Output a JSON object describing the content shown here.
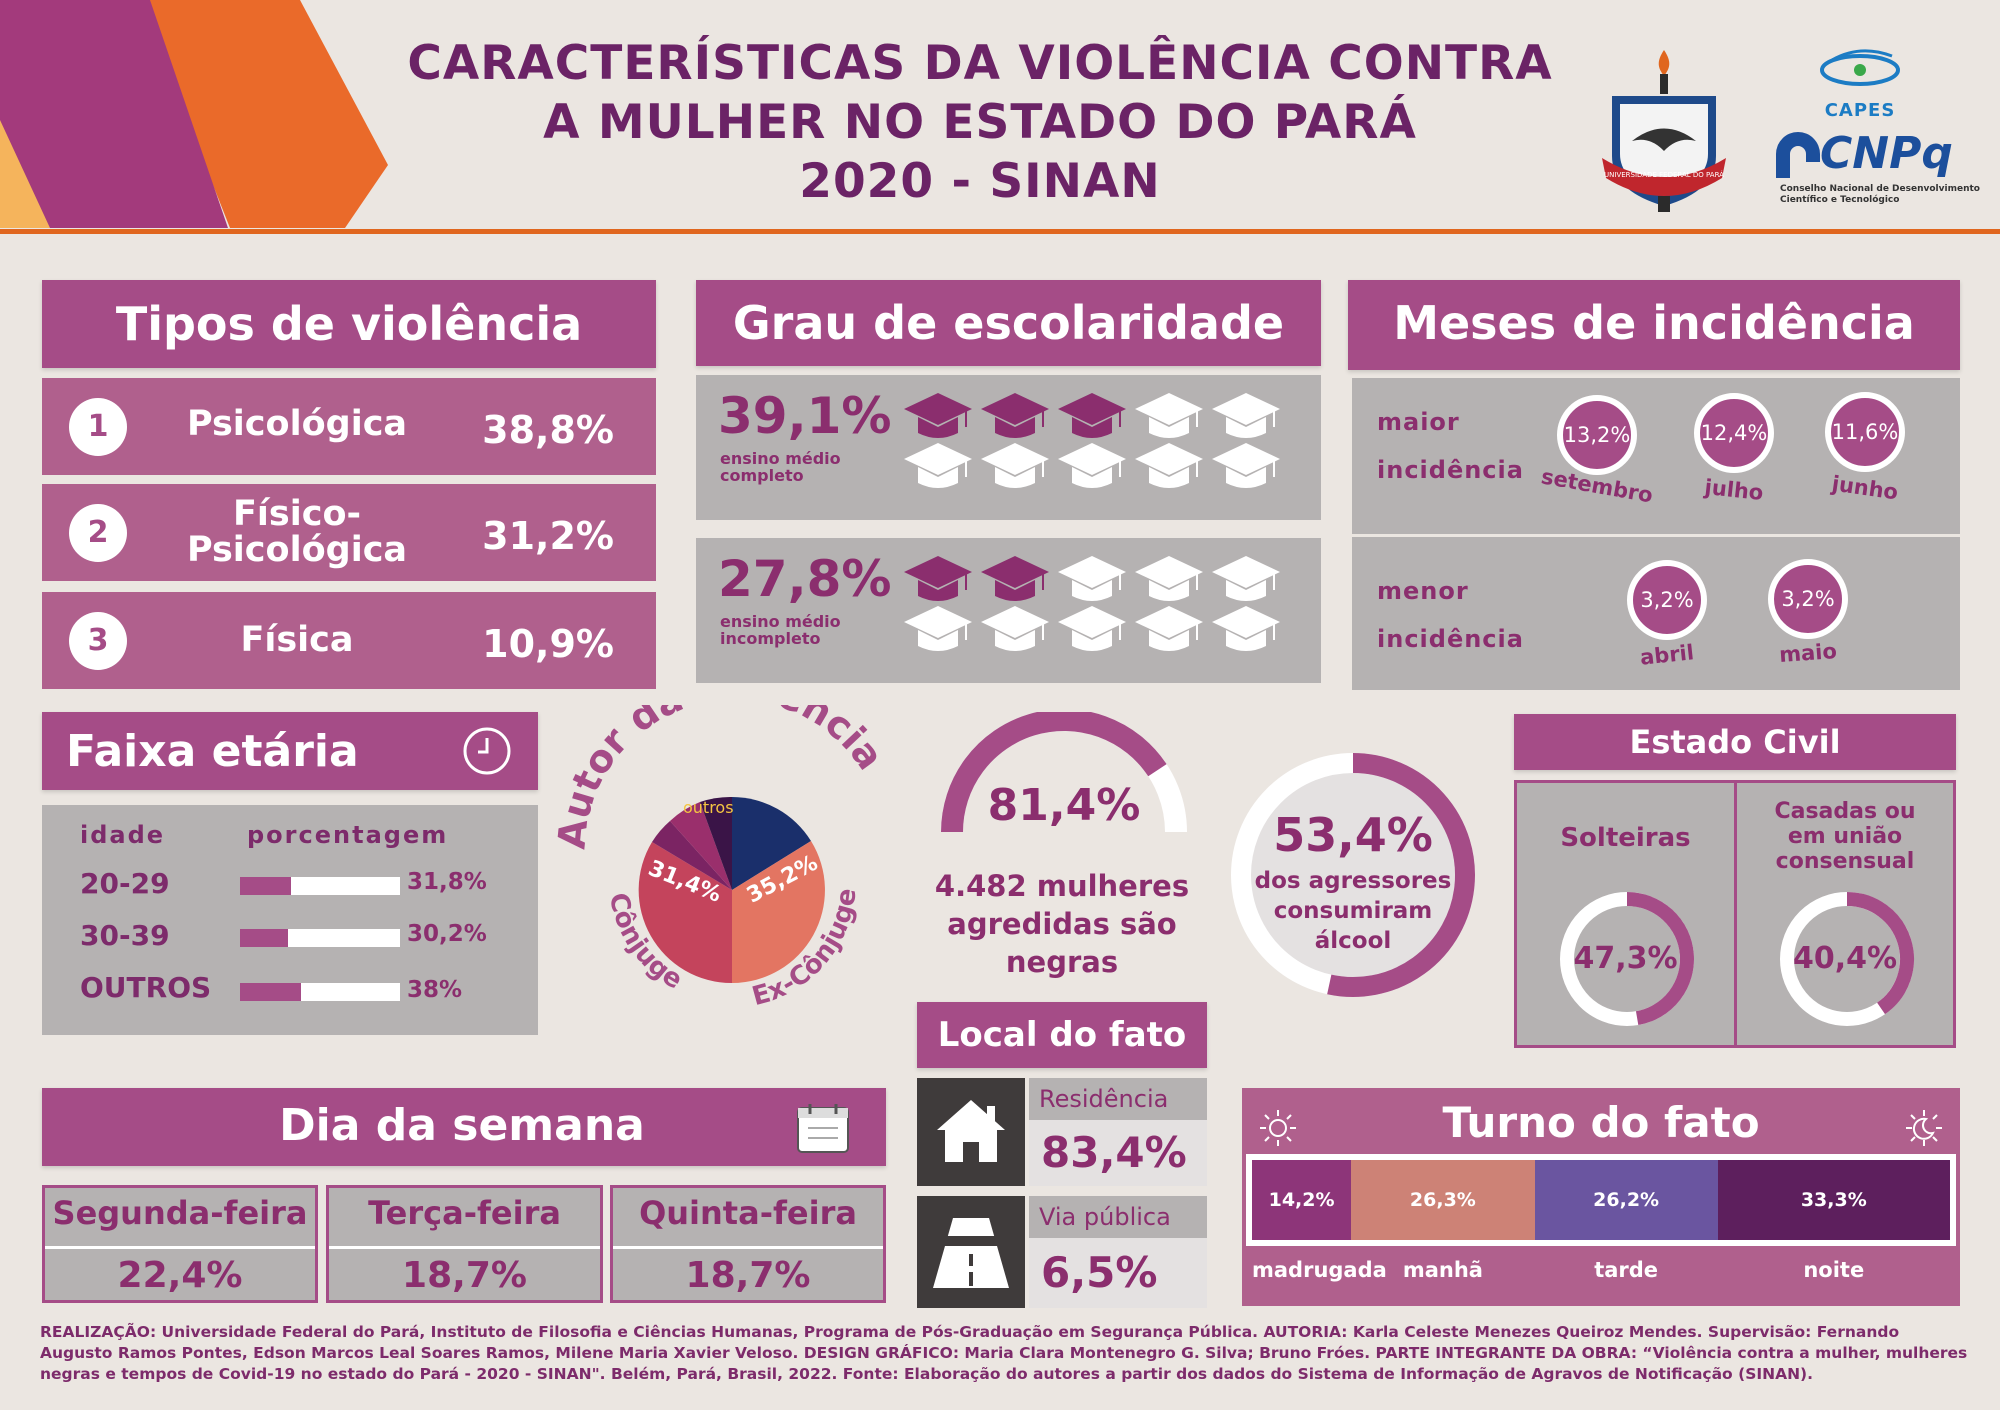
{
  "header": {
    "title_lines": [
      "CARACTERÍSTICAS DA VIOLÊNCIA CONTRA",
      "A MULHER NO ESTADO DO PARÁ",
      "2020 - SINAN"
    ],
    "seal_text": "UNIVERSIDADE FEDERAL DO PARÁ",
    "capes": "CAPES",
    "cnpq": "CNPq",
    "cnpq_sub_lines": [
      "Conselho Nacional de Desenvolvimento",
      "Científico e Tecnológico"
    ]
  },
  "tipos": {
    "title": "Tipos de violência",
    "items": [
      {
        "num": "1",
        "label": "Psicológica",
        "pct": "38,8%"
      },
      {
        "num": "2",
        "label_lines": [
          "Físico-",
          "Psicológica"
        ],
        "pct": "31,2%"
      },
      {
        "num": "3",
        "label": "Física",
        "pct": "10,9%"
      }
    ]
  },
  "escolaridade": {
    "title": "Grau de escolaridade",
    "items": [
      {
        "pct": "39,1%",
        "sub_lines": [
          "ensino médio",
          "completo"
        ],
        "filled_caps": 3,
        "total_caps": 10
      },
      {
        "pct": "27,8%",
        "sub_lines": [
          "ensino médio",
          "incompleto"
        ],
        "filled_caps": 2,
        "total_caps": 10
      }
    ]
  },
  "meses": {
    "title": "Meses de incidência",
    "maior": {
      "label_lines": [
        "maior",
        "incidência"
      ],
      "months": [
        {
          "pct": "13,2%",
          "name": "setembro"
        },
        {
          "pct": "12,4%",
          "name": "julho"
        },
        {
          "pct": "11,6%",
          "name": "junho"
        }
      ]
    },
    "menor": {
      "label_lines": [
        "menor",
        "incidência"
      ],
      "months": [
        {
          "pct": "3,2%",
          "name": "abril"
        },
        {
          "pct": "3,2%",
          "name": "maio"
        }
      ]
    }
  },
  "faixa": {
    "title": "Faixa etária",
    "col_idade": "idade",
    "col_pct": "porcentagem",
    "rows": [
      {
        "idade": "20-29",
        "pct": "31,8%",
        "value": 31.8
      },
      {
        "idade": "30-39",
        "pct": "30,2%",
        "value": 30.2
      },
      {
        "idade": "OUTROS",
        "pct": "38%",
        "value": 38
      }
    ]
  },
  "autor": {
    "title": "Autor da violência",
    "outros": "outros",
    "conjuge_pct": "31,4%",
    "ex_pct": "35,2%",
    "conjuge": "Cônjuge",
    "ex": "Ex-Cônjuge"
  },
  "negras": {
    "pct": "81,4%",
    "value": 81.4,
    "text_lines": [
      "4.482 mulheres",
      "agredidas são",
      "negras"
    ]
  },
  "alcool": {
    "pct": "53,4%",
    "value": 53.4,
    "text_lines": [
      "dos agressores",
      "consumiram",
      "álcool"
    ]
  },
  "estado_civil": {
    "title": "Estado Civil",
    "solteiras": {
      "label": "Solteiras",
      "pct": "47,3%",
      "value": 47.3
    },
    "casadas": {
      "label_lines": [
        "Casadas ou",
        "em união",
        "consensual"
      ],
      "pct": "40,4%",
      "value": 40.4
    }
  },
  "local": {
    "title": "Local do fato",
    "items": [
      {
        "label": "Residência",
        "pct": "83,4%"
      },
      {
        "label": "Via pública",
        "pct": "6,5%"
      }
    ]
  },
  "dia": {
    "title": "Dia da semana",
    "items": [
      {
        "name": "Segunda-feira",
        "pct": "22,4%"
      },
      {
        "name": "Terça-feira",
        "pct": "18,7%"
      },
      {
        "name": "Quinta-feira",
        "pct": "18,7%"
      }
    ]
  },
  "turno": {
    "title": "Turno do fato",
    "items": [
      {
        "pct": "14,2%",
        "label": "madrugada",
        "value": 14.2,
        "color": "#8d3579"
      },
      {
        "pct": "26,3%",
        "label": "manhã",
        "value": 26.3,
        "color": "#cd8276"
      },
      {
        "pct": "26,2%",
        "label": "tarde",
        "value": 26.2,
        "color": "#6a55a0"
      },
      {
        "pct": "33,3%",
        "label": "noite",
        "value": 33.3,
        "color": "#5d1f5d"
      }
    ]
  },
  "footer": "REALIZAÇÃO: Universidade Federal do Pará, Instituto de Filosofia e Ciências Humanas, Programa de Pós-Graduação em Segurança Pública. AUTORIA: Karla Celeste Menezes Queiroz Mendes. Supervisão: Fernando Augusto Ramos Pontes, Edson Marcos Leal Soares Ramos, Milene Maria Xavier Veloso. DESIGN GRÁFICO: Maria Clara Montenegro G. Silva; Bruno Fróes. PARTE INTEGRANTE DA OBRA: “Violência contra a mulher, mulheres negras e tempos de Covid-19 no estado do Pará - 2020 - SINAN\". Belém, Pará, Brasil, 2022. Fonte: Elaboração do autores a partir dos dados do Sistema de Informação de Agravos de Notificação (SINAN).",
  "colors": {
    "primary": "#a54c87",
    "dark": "#6b2366",
    "orange": "#e0661e",
    "grey": "#b5b2b2"
  }
}
